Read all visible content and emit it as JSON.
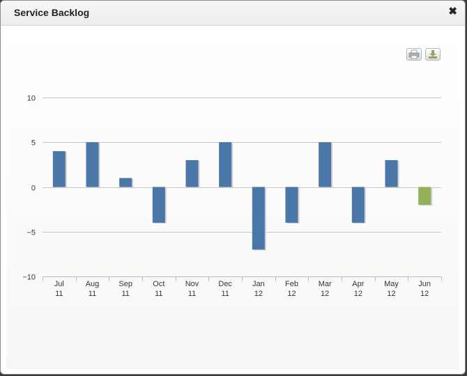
{
  "window": {
    "title": "Service Backlog"
  },
  "toolbar": {
    "print_icon": "printer-icon",
    "export_icon": "download-icon"
  },
  "colors": {
    "positive": "#4a76a8",
    "negative": "#4a76a8",
    "highlight": "#95b05a",
    "grid": "#c8c8c8"
  },
  "chart_data": {
    "type": "bar",
    "categories": [
      [
        "Jul",
        "11"
      ],
      [
        "Aug",
        "11"
      ],
      [
        "Sep",
        "11"
      ],
      [
        "Oct",
        "11"
      ],
      [
        "Nov",
        "11"
      ],
      [
        "Dec",
        "11"
      ],
      [
        "Jan",
        "12"
      ],
      [
        "Feb",
        "12"
      ],
      [
        "Mar",
        "12"
      ],
      [
        "Apr",
        "12"
      ],
      [
        "May",
        "12"
      ],
      [
        "Jun",
        "12"
      ]
    ],
    "values": [
      4,
      5,
      1,
      -4,
      3,
      5,
      -7,
      -4,
      5,
      -4,
      3,
      -2
    ],
    "highlight_index": 11,
    "ylim": [
      -10,
      10
    ],
    "yticks": [
      10,
      5,
      0,
      -5,
      -10
    ],
    "ytick_labels": [
      "10",
      "5",
      "0",
      "−5",
      "−10"
    ],
    "grid": true,
    "legend": false,
    "title": "",
    "xlabel": "",
    "ylabel": ""
  }
}
